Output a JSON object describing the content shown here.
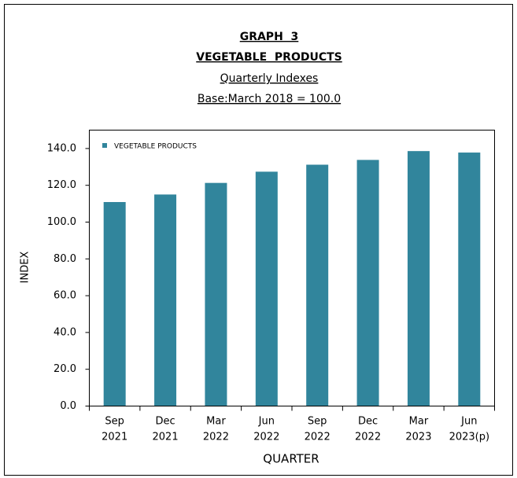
{
  "chart_data": {
    "type": "bar",
    "title": [
      "GRAPH  3",
      "VEGETABLE  PRODUCTS",
      "Quarterly Indexes",
      "Base:March 2018 = 100.0"
    ],
    "xlabel": "QUARTER",
    "ylabel": "INDEX",
    "categories": [
      [
        "Sep",
        "2021"
      ],
      [
        "Dec",
        "2021"
      ],
      [
        "Mar",
        "2022"
      ],
      [
        "Jun",
        "2022"
      ],
      [
        "Sep",
        "2022"
      ],
      [
        "Dec",
        "2022"
      ],
      [
        "Mar",
        "2023"
      ],
      [
        "Jun",
        "2023(p)"
      ]
    ],
    "series": [
      {
        "name": "VEGETABLE PRODUCTS",
        "color": "#31859c",
        "values": [
          110.9,
          115.0,
          121.3,
          127.4,
          131.2,
          133.8,
          138.6,
          137.8
        ]
      }
    ],
    "ylim": [
      0,
      150
    ],
    "yticks": [
      {
        "value": 0,
        "label": "0.0"
      },
      {
        "value": 20,
        "label": "20.0"
      },
      {
        "value": 40,
        "label": "40.0"
      },
      {
        "value": 60,
        "label": "60.0"
      },
      {
        "value": 80,
        "label": "80.0"
      },
      {
        "value": 100,
        "label": "100.0"
      },
      {
        "value": 120,
        "label": "120.0"
      },
      {
        "value": 140,
        "label": "140.0"
      }
    ],
    "legend": "top-left"
  }
}
